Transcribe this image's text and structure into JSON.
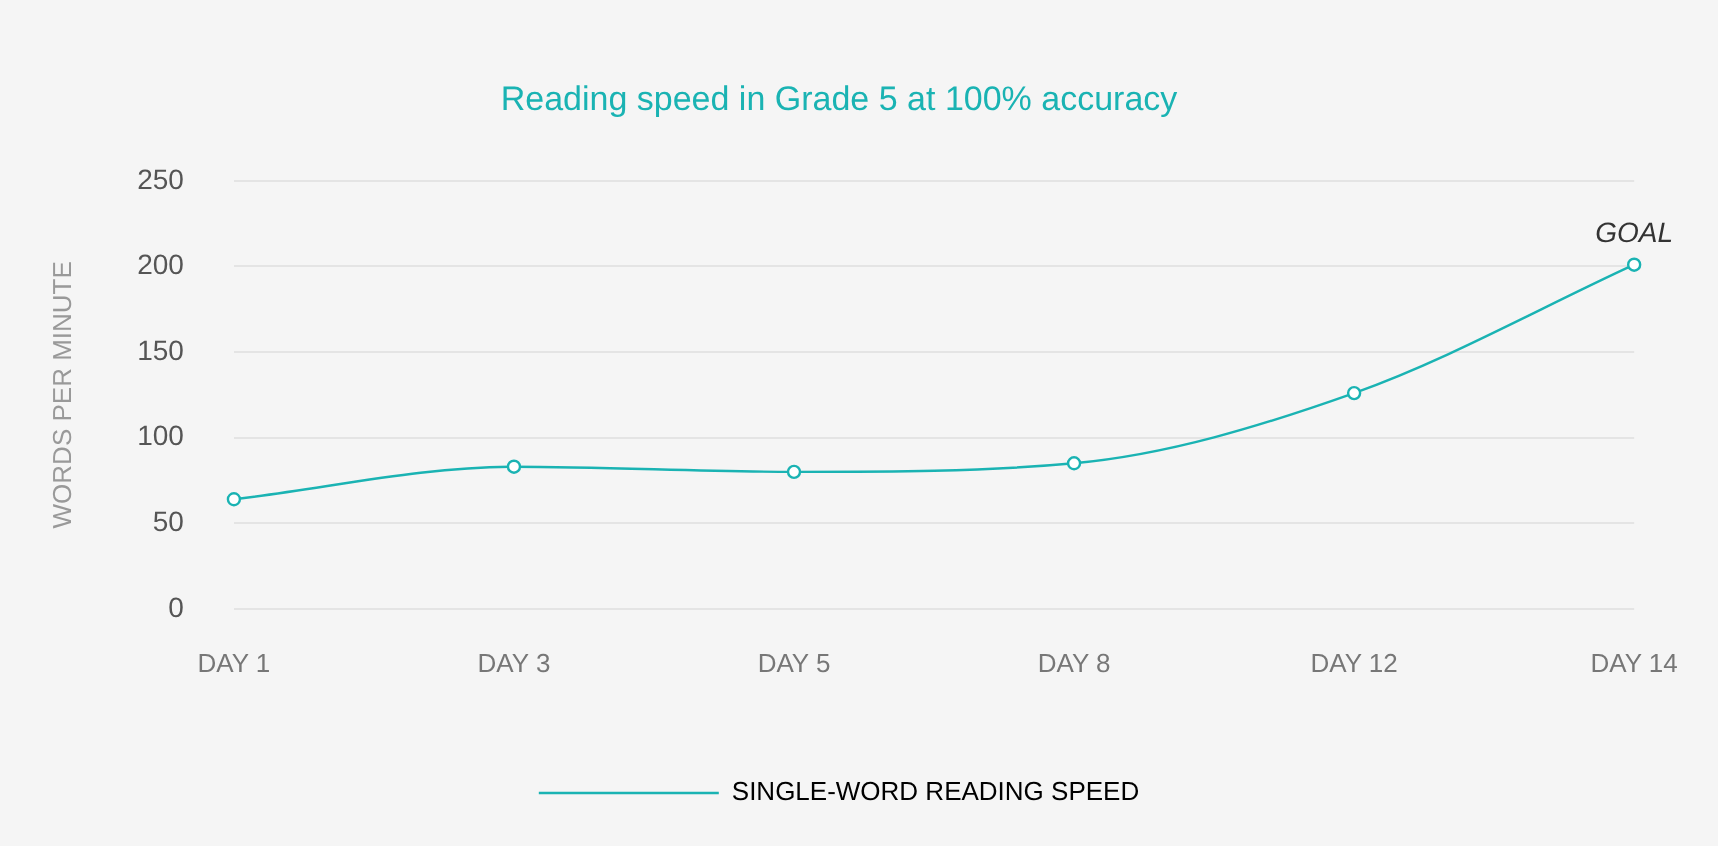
{
  "chart_data": {
    "type": "line",
    "title": "Reading speed in Grade 5 at 100% accuracy",
    "ylabel": "WORDS PER MINUTE",
    "categories": [
      "DAY 1",
      "DAY 3",
      "DAY 5",
      "DAY 8",
      "DAY 12",
      "DAY 14"
    ],
    "series": [
      {
        "name": "SINGLE-WORD READING SPEED",
        "color": "#1ab3b3",
        "values": [
          64,
          83,
          80,
          85,
          126,
          201
        ]
      }
    ],
    "ylim": [
      0,
      250
    ],
    "yticks": [
      0,
      50,
      100,
      150,
      200,
      250
    ],
    "grid": "y",
    "legend": "bottom",
    "marker": "circle",
    "line_style": "solid",
    "annotations": [
      {
        "text": "GOAL",
        "x": "DAY 14",
        "y": 201
      }
    ]
  }
}
